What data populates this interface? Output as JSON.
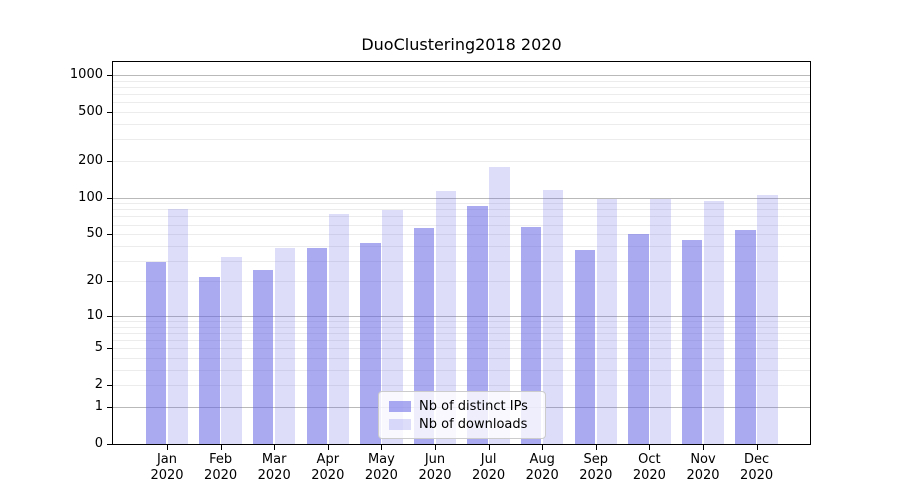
{
  "chart_data": {
    "type": "bar",
    "title": "DuoClustering2018 2020",
    "categories": [
      "Jan",
      "Feb",
      "Mar",
      "Apr",
      "May",
      "Jun",
      "Jul",
      "Aug",
      "Sep",
      "Oct",
      "Nov",
      "Dec"
    ],
    "year_label": "2020",
    "series": [
      {
        "name": "Nb of distinct IPs",
        "color": "rgba(100,100,230,0.55)",
        "values": [
          29,
          22,
          25,
          38,
          42,
          56,
          85,
          57,
          37,
          50,
          45,
          54
        ]
      },
      {
        "name": "Nb of downloads",
        "color": "rgba(100,100,230,0.22)",
        "values": [
          80,
          32,
          38,
          73,
          79,
          113,
          180,
          116,
          97,
          98,
          94,
          106
        ]
      }
    ],
    "y_axis": {
      "scale": "log1p",
      "ticks": [
        0,
        1,
        2,
        5,
        10,
        20,
        50,
        100,
        200,
        500,
        1000
      ],
      "max": 1280,
      "grid_major": [
        1,
        10,
        100,
        1000
      ],
      "grid_minor": [
        2,
        3,
        4,
        5,
        6,
        7,
        8,
        9,
        20,
        30,
        40,
        50,
        60,
        70,
        80,
        90,
        200,
        300,
        400,
        500,
        600,
        700,
        800,
        900
      ]
    },
    "legend_position": "lower center",
    "colors": {
      "grid_major": "#b9b9b9",
      "grid_minor": "#ececec",
      "spine": "#000000",
      "text": "#000000"
    }
  }
}
